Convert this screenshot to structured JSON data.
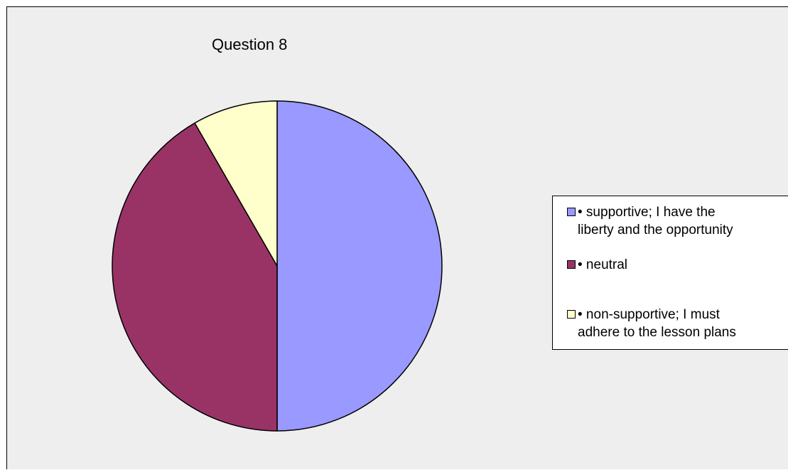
{
  "chart_data": {
    "type": "pie",
    "title": "Question 8",
    "slices": [
      {
        "label": "• supportive; I have the\nliberty and the opportunity",
        "value": 50,
        "color": "#9999ff"
      },
      {
        "label": "• neutral",
        "value": 41.67,
        "color": "#993366"
      },
      {
        "label": "• non-supportive; I must\nadhere to the lesson plans",
        "value": 8.33,
        "color": "#ffffcc"
      }
    ],
    "legend_position": "right"
  }
}
